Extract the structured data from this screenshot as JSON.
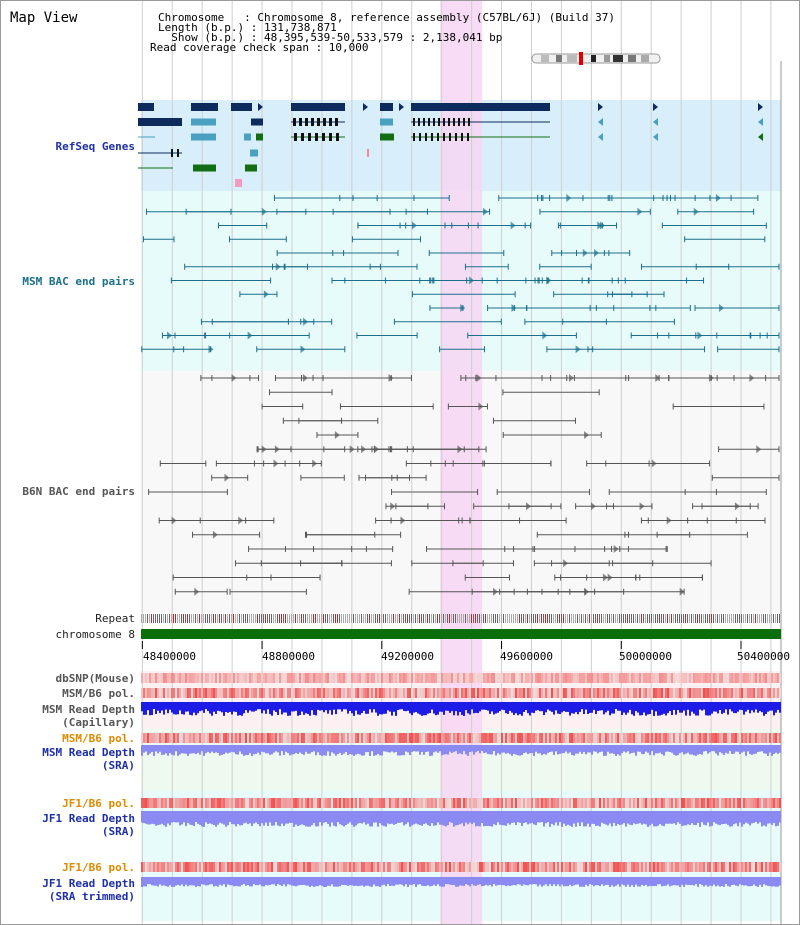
{
  "title": "Map View",
  "info": {
    "line1": "Chromosome   : Chromosome 8, reference assembly (C57BL/6J) (Build 37)",
    "line2": "Length (b.p.) : 131,738,871",
    "line3": "  Show (b.p.) : 48,395,539-50,533,579 : 2,138,041 bp",
    "line4": "Read coverage check span : 10,000"
  },
  "tracks": {
    "refseq": "RefSeq Genes",
    "msm_bac": "MSM BAC end pairs",
    "b6n_bac": "B6N BAC end pairs",
    "repeat": "Repeat",
    "chromosome": "chromosome 8",
    "dbsnp": "dbSNP(Mouse)",
    "msm_b6_pol": "MSM/B6 pol.",
    "msm_depth_cap_1": "MSM Read Depth",
    "msm_depth_cap_2": "(Capillary)",
    "msm_b6_pol_2": "MSM/B6 pol.",
    "msm_depth_sra_1": "MSM Read Depth",
    "msm_depth_sra_2": "(SRA)",
    "jf1_b6_pol": "JF1/B6 pol.",
    "jf1_depth_sra_1": "JF1 Read Depth",
    "jf1_depth_sra_2": "(SRA)",
    "jf1_b6_pol_2": "JF1/B6 pol.",
    "jf1_depth_trim_1": "JF1 Read Depth",
    "jf1_depth_trim_2": "(SRA trimmed)"
  },
  "axis": {
    "ticks": [
      "48400000",
      "48800000",
      "49200000",
      "49600000",
      "50000000",
      "50400000"
    ],
    "tick_values": [
      48400000,
      48800000,
      49200000,
      49600000,
      50000000,
      50400000
    ],
    "range": [
      48395539,
      50533579
    ]
  },
  "highlight_region": [
    49395000,
    49535000
  ],
  "colors": {
    "refseq_bg": "#d8eefa",
    "msm_bg": "#e8fbfb",
    "b6n_bg": "#f8f8f8",
    "highlight": "#f7d6f3",
    "chromosome": "#0a6e0a",
    "msm_pair": "#1a6f8c",
    "b6n_pair": "#555555",
    "gene_dark": "#0d2b5c",
    "gene_teal": "#4aa0c0",
    "gene_green": "#136e13",
    "depth_blue": "#1c1ce6",
    "depth_light": "#8a8af2"
  }
}
